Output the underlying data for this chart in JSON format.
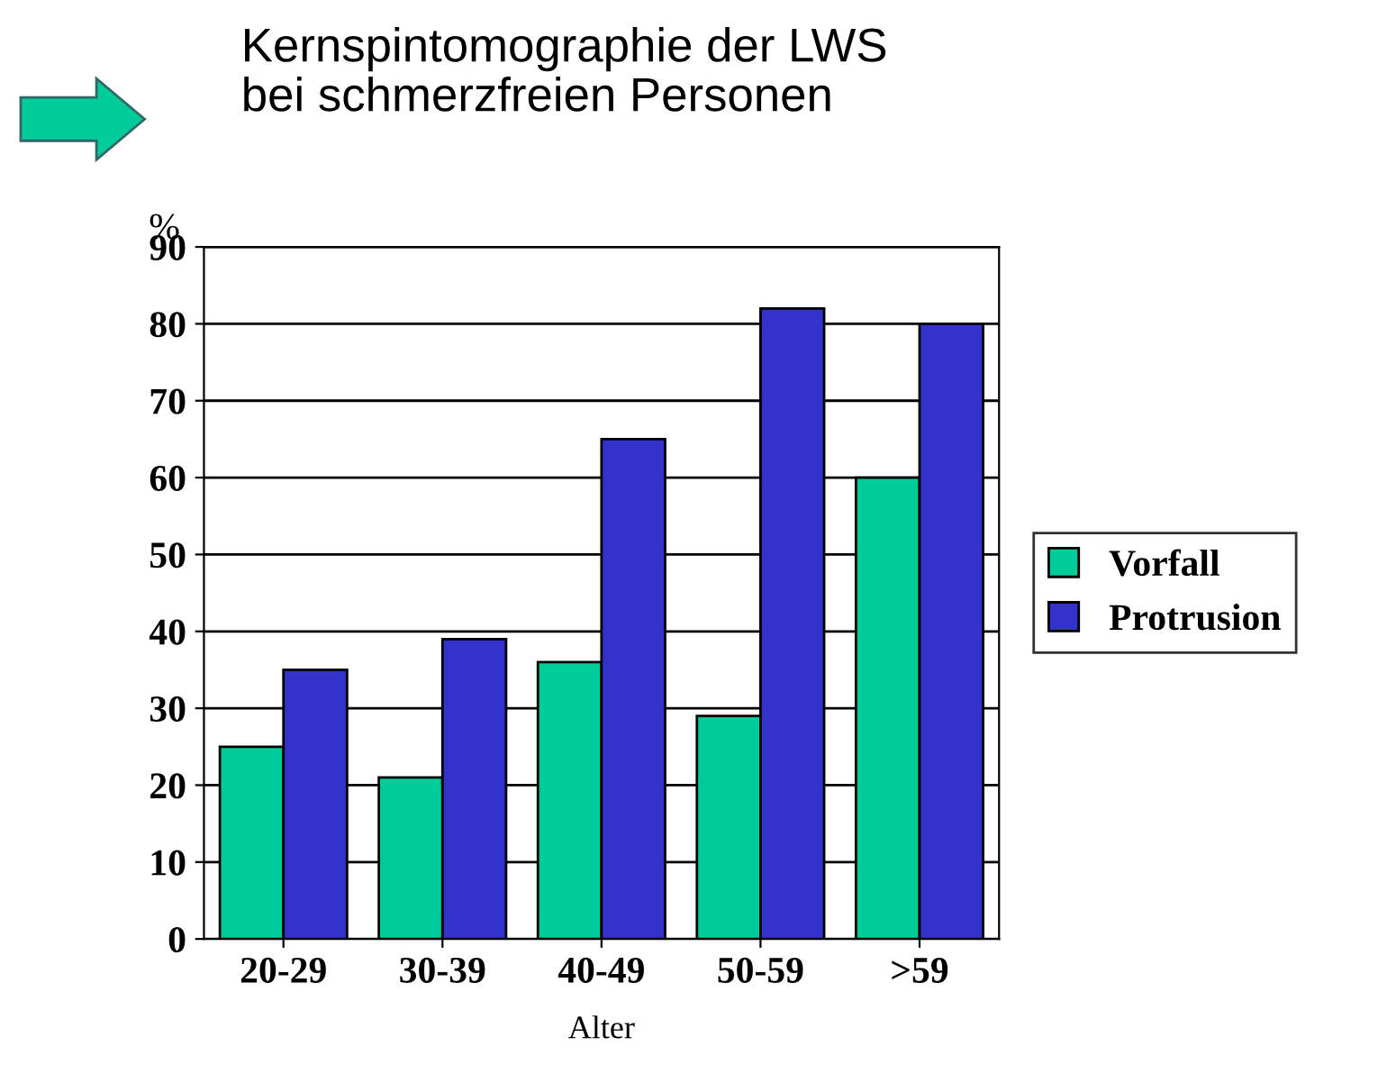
{
  "chart_data": {
    "type": "bar",
    "title": "Kernspintomographie der LWS\nbei schmerzfreien Personen",
    "xlabel": "Alter",
    "ylabel": "%",
    "categories": [
      "20-29",
      "30-39",
      "40-49",
      "50-59",
      ">59"
    ],
    "series": [
      {
        "name": "Vorfall",
        "color": "#00cc99",
        "values": [
          25,
          21,
          36,
          29,
          60
        ]
      },
      {
        "name": "Protrusion",
        "color": "#3333cc",
        "values": [
          35,
          39,
          65,
          82,
          80
        ]
      }
    ],
    "ylim": [
      0,
      90
    ],
    "yticks": [
      0,
      10,
      20,
      30,
      40,
      50,
      60,
      70,
      80,
      90
    ],
    "grid": "y",
    "legend": "right"
  }
}
